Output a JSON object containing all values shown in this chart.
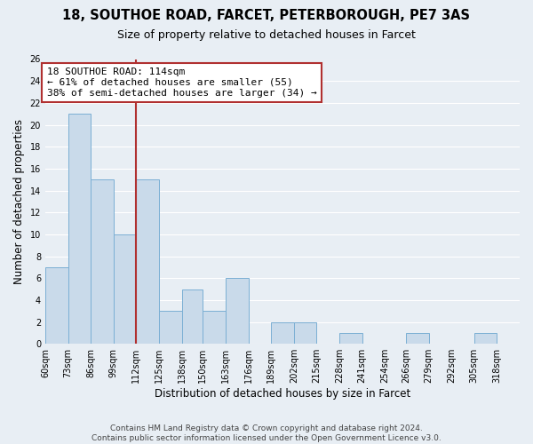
{
  "title": "18, SOUTHOE ROAD, FARCET, PETERBOROUGH, PE7 3AS",
  "subtitle": "Size of property relative to detached houses in Farcet",
  "xlabel": "Distribution of detached houses by size in Farcet",
  "ylabel": "Number of detached properties",
  "bin_labels": [
    "60sqm",
    "73sqm",
    "86sqm",
    "99sqm",
    "112sqm",
    "125sqm",
    "138sqm",
    "150sqm",
    "163sqm",
    "176sqm",
    "189sqm",
    "202sqm",
    "215sqm",
    "228sqm",
    "241sqm",
    "254sqm",
    "266sqm",
    "279sqm",
    "292sqm",
    "305sqm",
    "318sqm"
  ],
  "bin_edges": [
    60,
    73,
    86,
    99,
    112,
    125,
    138,
    150,
    163,
    176,
    189,
    202,
    215,
    228,
    241,
    254,
    266,
    279,
    292,
    305,
    318,
    331
  ],
  "counts": [
    7,
    21,
    15,
    10,
    15,
    3,
    5,
    3,
    6,
    0,
    2,
    2,
    0,
    1,
    0,
    0,
    1,
    0,
    0,
    1,
    0
  ],
  "bar_color": "#c9daea",
  "bar_edge_color": "#7bafd4",
  "vline_x": 112,
  "vline_color": "#b03030",
  "annotation_text": "18 SOUTHOE ROAD: 114sqm\n← 61% of detached houses are smaller (55)\n38% of semi-detached houses are larger (34) →",
  "annotation_box_facecolor": "#ffffff",
  "annotation_box_edgecolor": "#b03030",
  "ylim": [
    0,
    26
  ],
  "yticks": [
    0,
    2,
    4,
    6,
    8,
    10,
    12,
    14,
    16,
    18,
    20,
    22,
    24,
    26
  ],
  "footer_text": "Contains HM Land Registry data © Crown copyright and database right 2024.\nContains public sector information licensed under the Open Government Licence v3.0.",
  "bg_color": "#e8eef4",
  "plot_bg_color": "#e8eef4",
  "grid_color": "#ffffff",
  "title_fontsize": 10.5,
  "subtitle_fontsize": 9,
  "axis_label_fontsize": 8.5,
  "tick_fontsize": 7,
  "annotation_fontsize": 8,
  "footer_fontsize": 6.5
}
